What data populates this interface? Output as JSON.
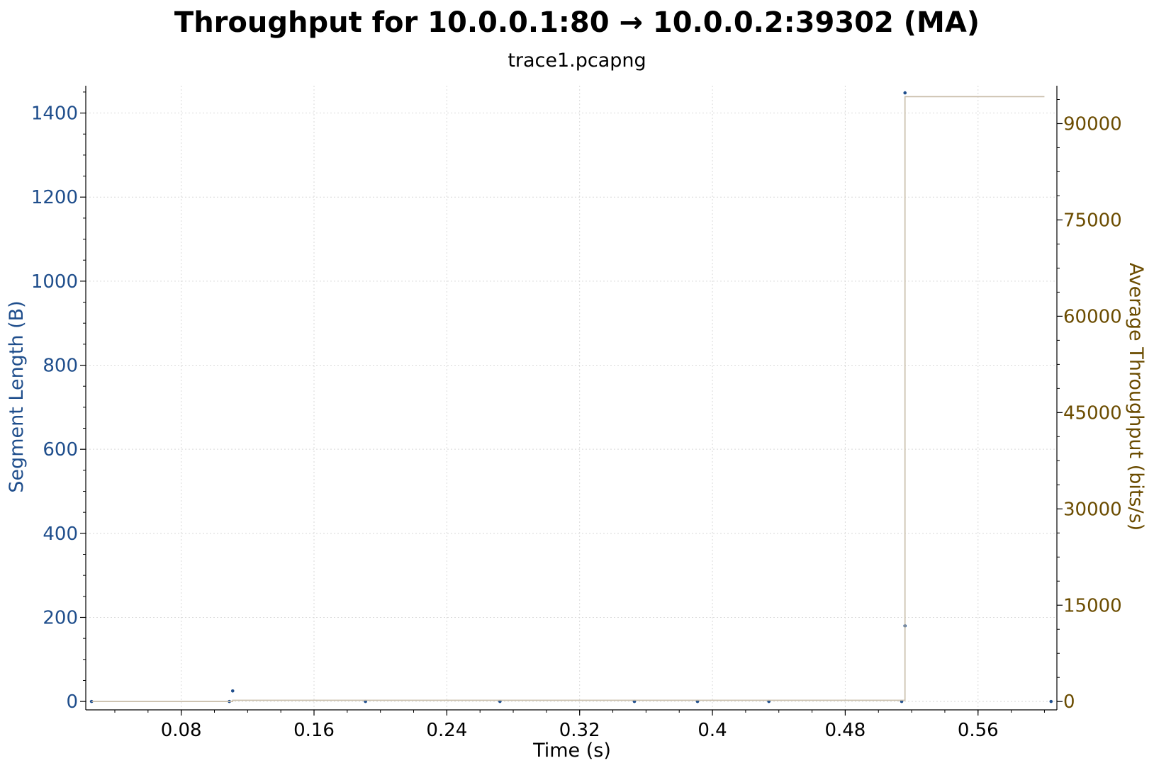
{
  "chart_data": {
    "type": "scatter",
    "title": "Throughput for 10.0.0.1:80 → 10.0.0.2:39302 (MA)",
    "subtitle": "trace1.pcapng",
    "xlabel": "Time (s)",
    "ylabel_left": "Segment Length (B)",
    "ylabel_right": "Average Throughput (bits/s)",
    "xlim": [
      0.0225,
      0.6075
    ],
    "ylim_left": [
      -20,
      1465
    ],
    "ylim_right": [
      -1300,
      95900
    ],
    "x_ticks": [
      0.08,
      0.16,
      0.24,
      0.32,
      0.4,
      0.48,
      0.56
    ],
    "x_tick_labels": [
      "0.08",
      "0.16",
      "0.24",
      "0.32",
      "0.4",
      "0.48",
      "0.56"
    ],
    "y_left_ticks": [
      0,
      200,
      400,
      600,
      800,
      1000,
      1200,
      1400
    ],
    "y_left_tick_labels": [
      "0",
      "200",
      "400",
      "600",
      "800",
      "1000",
      "1200",
      "1400"
    ],
    "y_right_ticks": [
      0,
      15000,
      30000,
      45000,
      60000,
      75000,
      90000
    ],
    "y_right_tick_labels": [
      "0",
      "15000",
      "30000",
      "45000",
      "60000",
      "75000",
      "90000"
    ],
    "grid": true,
    "series": [
      {
        "axis": "left",
        "mode": "points",
        "color": "#1f4e8c",
        "x": [
          0.026,
          0.109,
          0.111,
          0.191,
          0.272,
          0.353,
          0.391,
          0.434,
          0.514,
          0.516,
          0.516,
          0.604
        ],
        "y": [
          0,
          0,
          25,
          0,
          0,
          0,
          0,
          0,
          0,
          180,
          1448,
          0
        ]
      },
      {
        "axis": "right",
        "mode": "step",
        "color": "#c8bca8",
        "x": [
          0.026,
          0.109,
          0.111,
          0.514,
          0.516,
          0.6
        ],
        "y": [
          0,
          0,
          200,
          200,
          94200,
          94200
        ]
      }
    ]
  }
}
